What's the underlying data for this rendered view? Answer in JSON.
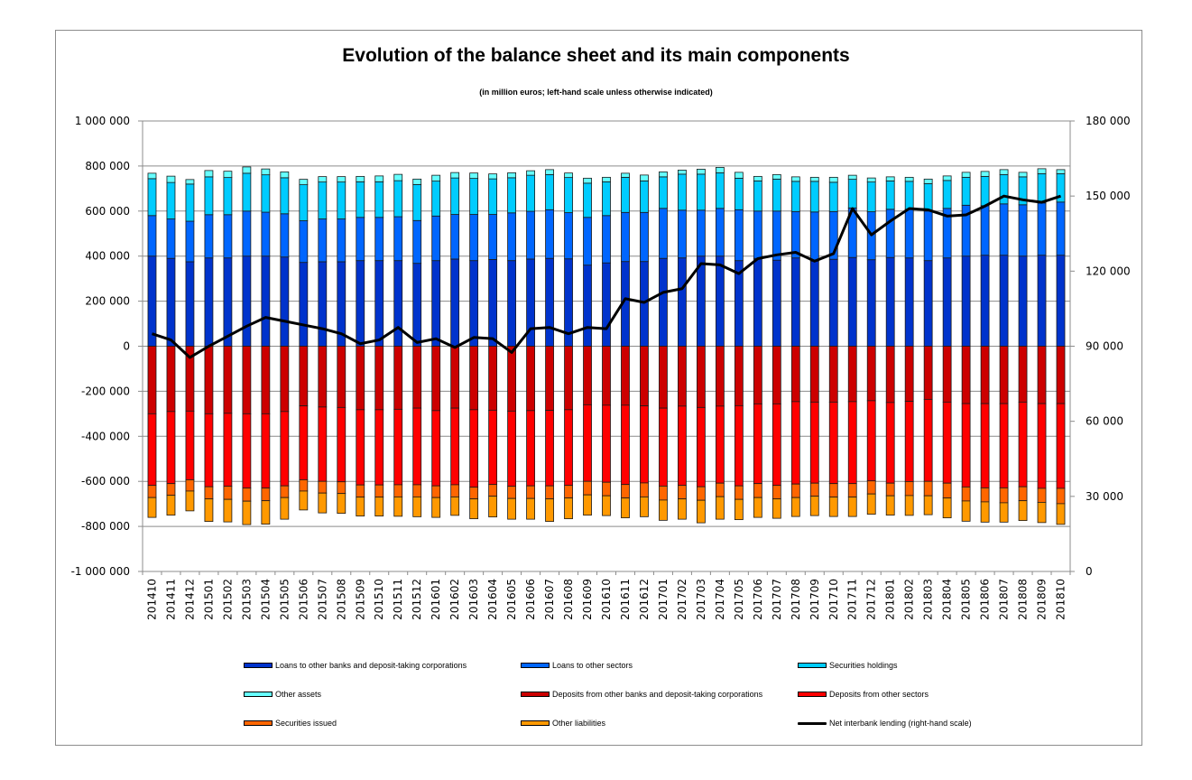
{
  "chart_data": {
    "type": "bar",
    "stacked": true,
    "title": "Evolution of the balance sheet and its main components",
    "subtitle": "(in million euros; left-hand scale unless otherwise indicated)",
    "xlabel": "",
    "ylabel": "",
    "ylim": [
      -1000000,
      1000000
    ],
    "y2lim": [
      0,
      180000
    ],
    "yticks": [
      "1 000 000",
      "800 000",
      "600 000",
      "400 000",
      "200 000",
      "0",
      "-200 000",
      "-400 000",
      "-600 000",
      "-800 000",
      "-1 000 000"
    ],
    "ytick_values": [
      1000000,
      800000,
      600000,
      400000,
      200000,
      0,
      -200000,
      -400000,
      -600000,
      -800000,
      -1000000
    ],
    "y2ticks": [
      "180 000",
      "150 000",
      "120 000",
      "90 000",
      "60 000",
      "30 000",
      "0"
    ],
    "y2tick_values": [
      180000,
      150000,
      120000,
      90000,
      60000,
      30000,
      0
    ],
    "grid": true,
    "legend_position": "bottom",
    "categories": [
      "201410",
      "201411",
      "201412",
      "201501",
      "201502",
      "201503",
      "201504",
      "201505",
      "201506",
      "201507",
      "201508",
      "201509",
      "201510",
      "201511",
      "201512",
      "201601",
      "201602",
      "201603",
      "201604",
      "201605",
      "201606",
      "201607",
      "201608",
      "201609",
      "201610",
      "201611",
      "201612",
      "201701",
      "201702",
      "201703",
      "201704",
      "201705",
      "201706",
      "201707",
      "201708",
      "201709",
      "201710",
      "201711",
      "201712",
      "201801",
      "201802",
      "201803",
      "201804",
      "201805",
      "201806",
      "201807",
      "201808",
      "201809",
      "201810"
    ],
    "series": [
      {
        "name": "Loans to other banks and deposit-taking corporations",
        "color": "#0033cc",
        "axis": "left",
        "values": [
          400000,
          390000,
          375000,
          392000,
          392000,
          400000,
          400000,
          396000,
          372000,
          375000,
          375000,
          380000,
          380000,
          380000,
          368000,
          380000,
          387000,
          380000,
          385000,
          380000,
          387000,
          390000,
          388000,
          360000,
          370000,
          376000,
          376000,
          390000,
          392000,
          400000,
          400000,
          380000,
          390000,
          382000,
          392000,
          378000,
          386000,
          394000,
          384000,
          394000,
          392000,
          380000,
          392000,
          400000,
          404000,
          404000,
          400000,
          404000,
          404000
        ]
      },
      {
        "name": "Loans to other sectors",
        "color": "#0066ff",
        "axis": "left",
        "values": [
          180000,
          175000,
          180000,
          192000,
          192000,
          200000,
          195000,
          192000,
          185000,
          190000,
          190000,
          192000,
          192000,
          195000,
          190000,
          198000,
          198000,
          205000,
          200000,
          212000,
          212000,
          216000,
          205000,
          212000,
          210000,
          218000,
          218000,
          222000,
          212000,
          204000,
          212000,
          226000,
          210000,
          218000,
          206000,
          218000,
          212000,
          220000,
          213000,
          214000,
          216000,
          220000,
          220000,
          226000,
          220000,
          228000,
          228000,
          232000,
          236000
        ]
      },
      {
        "name": "Securities holdings",
        "color": "#00ccff",
        "axis": "left",
        "values": [
          164000,
          162000,
          165000,
          168000,
          165000,
          168000,
          166000,
          160000,
          160000,
          164000,
          164000,
          158000,
          158000,
          160000,
          160000,
          155000,
          162000,
          160000,
          158000,
          156000,
          160000,
          156000,
          156000,
          152000,
          150000,
          156000,
          140000,
          140000,
          160000,
          160000,
          158000,
          140000,
          134000,
          142000,
          134000,
          136000,
          130000,
          127000,
          132000,
          126000,
          124000,
          122000,
          124000,
          124000,
          130000,
          130000,
          124000,
          130000,
          126000
        ]
      },
      {
        "name": "Other assets",
        "color": "#66ffff",
        "axis": "left",
        "values": [
          24000,
          28000,
          20000,
          28000,
          28000,
          28000,
          26000,
          26000,
          24000,
          24000,
          24000,
          24000,
          26000,
          28000,
          24000,
          26000,
          24000,
          24000,
          22000,
          22000,
          20000,
          22000,
          20000,
          22000,
          20000,
          18000,
          26000,
          22000,
          18000,
          22000,
          24000,
          26000,
          20000,
          20000,
          20000,
          18000,
          22000,
          18000,
          18000,
          18000,
          18000,
          20000,
          20000,
          22000,
          22000,
          22000,
          20000,
          22000,
          18000
        ]
      },
      {
        "name": "Deposits from other banks and deposit-taking corporations",
        "color": "#cc0000",
        "axis": "left",
        "values": [
          -300000,
          -290000,
          -288000,
          -300000,
          -298000,
          -300000,
          -300000,
          -290000,
          -265000,
          -270000,
          -272000,
          -282000,
          -282000,
          -280000,
          -275000,
          -286000,
          -275000,
          -282000,
          -284000,
          -288000,
          -286000,
          -285000,
          -282000,
          -260000,
          -262000,
          -262000,
          -265000,
          -275000,
          -266000,
          -272000,
          -266000,
          -264000,
          -256000,
          -256000,
          -246000,
          -248000,
          -248000,
          -246000,
          -242000,
          -250000,
          -245000,
          -236000,
          -248000,
          -255000,
          -255000,
          -255000,
          -248000,
          -255000,
          -255000
        ]
      },
      {
        "name": "Deposits from other sectors",
        "color": "#ff0000",
        "axis": "left",
        "values": [
          -318000,
          -320000,
          -305000,
          -324000,
          -324000,
          -330000,
          -330000,
          -330000,
          -328000,
          -330000,
          -330000,
          -334000,
          -334000,
          -335000,
          -340000,
          -334000,
          -340000,
          -344000,
          -330000,
          -334000,
          -334000,
          -335000,
          -336000,
          -340000,
          -342000,
          -352000,
          -342000,
          -346000,
          -352000,
          -352000,
          -342000,
          -356000,
          -354000,
          -362000,
          -366000,
          -360000,
          -362000,
          -364000,
          -356000,
          -358000,
          -356000,
          -364000,
          -360000,
          -370000,
          -374000,
          -374000,
          -376000,
          -376000,
          -376000
        ]
      },
      {
        "name": "Securities issued",
        "color": "#ff6600",
        "axis": "left",
        "values": [
          -54000,
          -52000,
          -50000,
          -54000,
          -58000,
          -58000,
          -56000,
          -52000,
          -50000,
          -52000,
          -52000,
          -54000,
          -54000,
          -54000,
          -54000,
          -52000,
          -54000,
          -52000,
          -52000,
          -54000,
          -56000,
          -58000,
          -56000,
          -60000,
          -60000,
          -60000,
          -62000,
          -62000,
          -60000,
          -60000,
          -60000,
          -60000,
          -62000,
          -60000,
          -60000,
          -58000,
          -60000,
          -60000,
          -58000,
          -56000,
          -62000,
          -64000,
          -66000,
          -62000,
          -62000,
          -66000,
          -62000,
          -62000,
          -68000
        ]
      },
      {
        "name": "Other liabilities",
        "color": "#ff9900",
        "axis": "left",
        "values": [
          -88000,
          -88000,
          -88000,
          -100000,
          -100000,
          -104000,
          -104000,
          -96000,
          -84000,
          -88000,
          -88000,
          -84000,
          -84000,
          -86000,
          -88000,
          -88000,
          -82000,
          -88000,
          -92000,
          -92000,
          -92000,
          -100000,
          -92000,
          -90000,
          -88000,
          -88000,
          -88000,
          -90000,
          -90000,
          -100000,
          -100000,
          -90000,
          -88000,
          -86000,
          -84000,
          -86000,
          -86000,
          -86000,
          -90000,
          -86000,
          -88000,
          -84000,
          -88000,
          -90000,
          -90000,
          -86000,
          -88000,
          -90000,
          -92000
        ]
      },
      {
        "name": "Net interbank lending (right-hand scale)",
        "color": "#000000",
        "axis": "right",
        "type": "line",
        "values": [
          95000,
          92500,
          85500,
          90000,
          94000,
          98000,
          101500,
          100000,
          98500,
          97000,
          95000,
          91000,
          92500,
          97500,
          91500,
          93000,
          89500,
          93500,
          93000,
          87500,
          97000,
          97500,
          95000,
          97500,
          97000,
          109000,
          107500,
          111500,
          113000,
          123000,
          122500,
          119000,
          125000,
          126500,
          127500,
          124000,
          127000,
          145000,
          134500,
          140000,
          145000,
          144500,
          142000,
          142500,
          146000,
          150000,
          148500,
          147500,
          150000
        ]
      }
    ]
  },
  "legend": {
    "items": [
      "Loans to other banks and deposit-taking corporations",
      "Loans to other sectors",
      "Securities holdings",
      "Other assets",
      "Deposits from other banks and deposit-taking corporations",
      "Deposits from other sectors",
      "Securities issued",
      "Other liabilities",
      "Net interbank lending (right-hand scale)"
    ]
  }
}
